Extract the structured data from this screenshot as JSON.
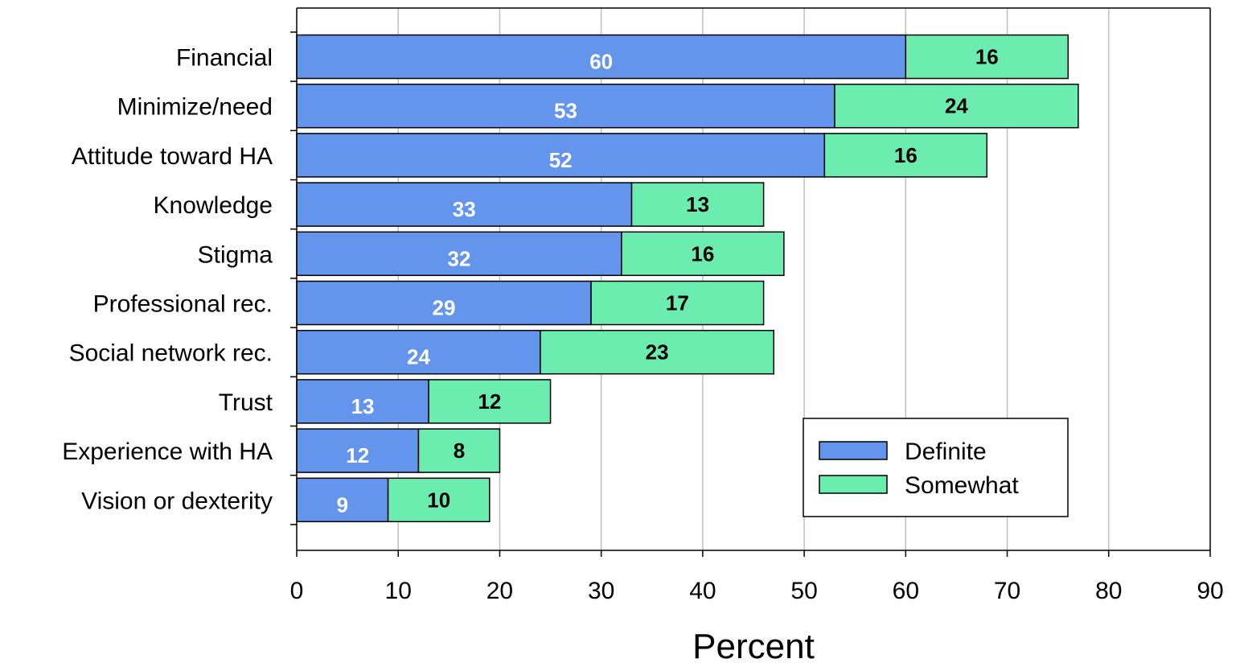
{
  "chart_data": {
    "type": "bar",
    "orientation": "horizontal",
    "stacked": true,
    "categories": [
      "Financial",
      "Minimize/need",
      "Attitude toward HA",
      "Knowledge",
      "Stigma",
      "Professional rec.",
      "Social network rec.",
      "Trust",
      "Experience with HA",
      "Vision or dexterity"
    ],
    "series": [
      {
        "name": "Definite",
        "values": [
          60,
          53,
          52,
          33,
          32,
          29,
          24,
          13,
          12,
          9
        ],
        "color": "#6495ED",
        "label_color": "#FFFFFF"
      },
      {
        "name": "Somewhat",
        "values": [
          16,
          24,
          16,
          13,
          16,
          17,
          23,
          12,
          8,
          10
        ],
        "color": "#6CEDB0",
        "label_color": "#000000"
      }
    ],
    "xlabel": "Percent",
    "ylabel": "",
    "xlim": [
      0,
      90
    ],
    "xticks": [
      0,
      10,
      20,
      30,
      40,
      50,
      60,
      70,
      80,
      90
    ],
    "grid": true,
    "legend_position": "bottom-right"
  }
}
